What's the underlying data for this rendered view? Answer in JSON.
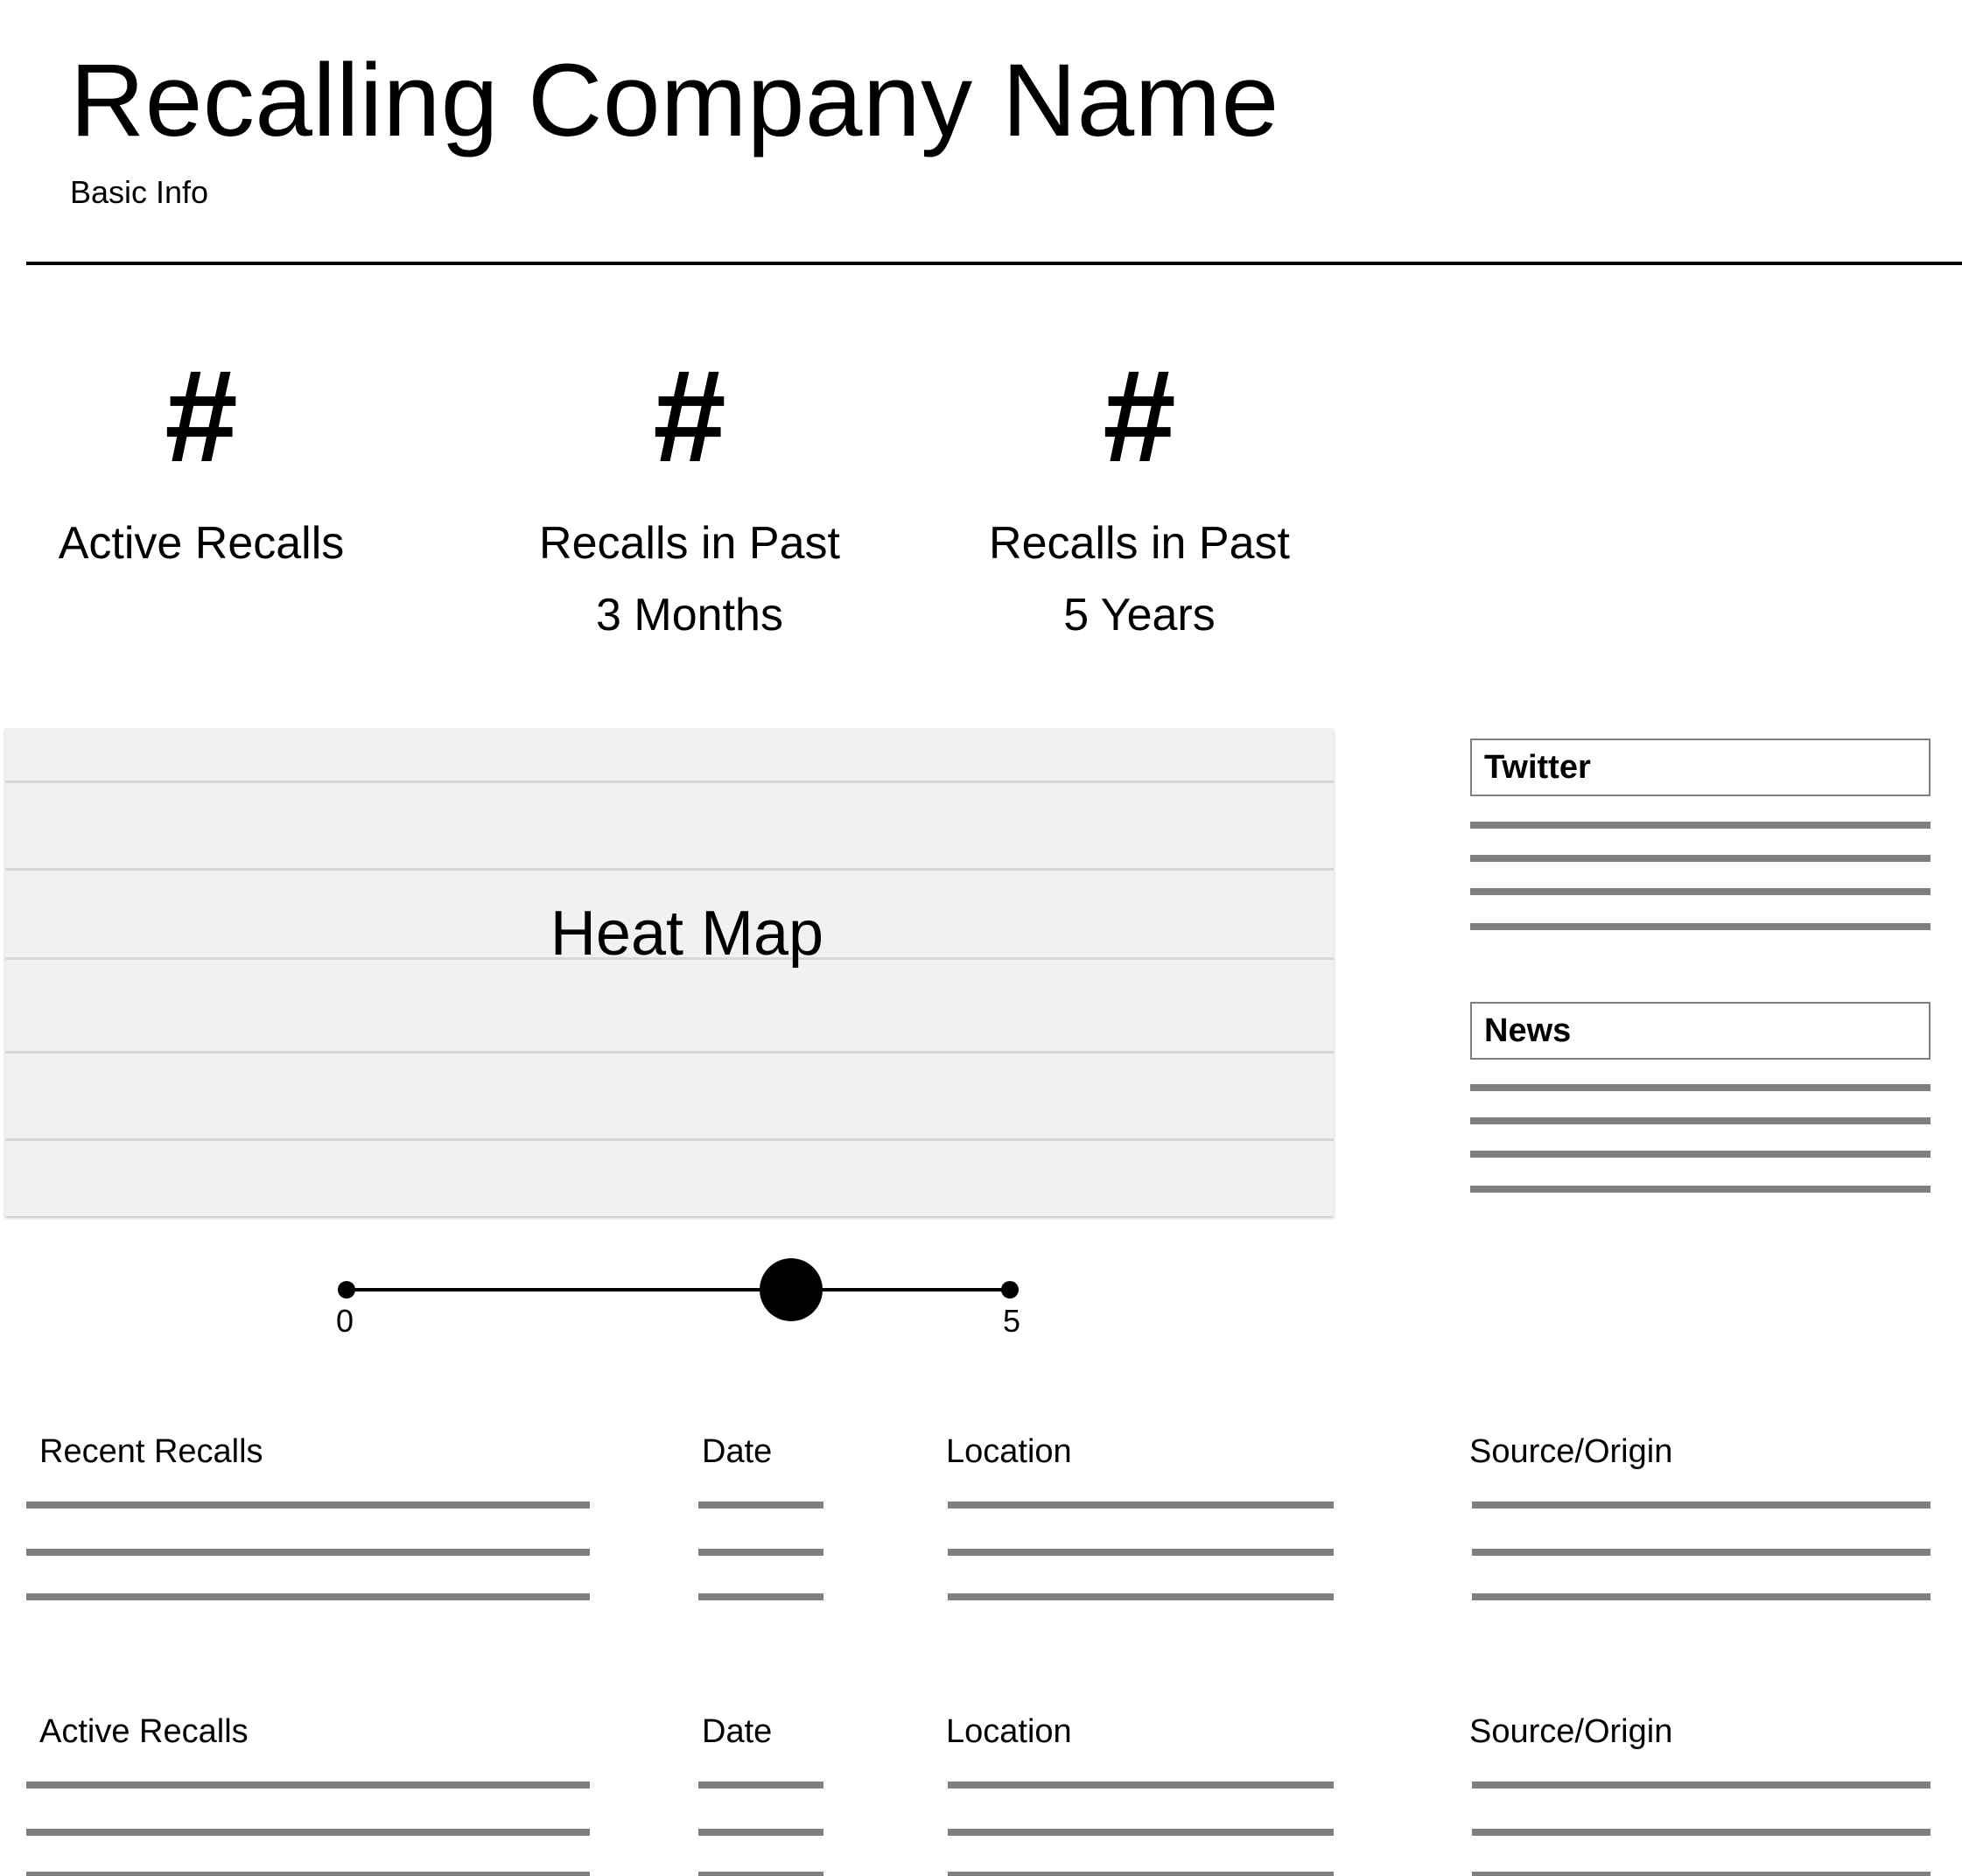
{
  "header": {
    "title": "Recalling Company Name",
    "subtitle": "Basic Info"
  },
  "stats": [
    {
      "value": "#",
      "label_line1": "Active Recalls",
      "label_line2": ""
    },
    {
      "value": "#",
      "label_line1": "Recalls in Past",
      "label_line2": "3 Months"
    },
    {
      "value": "#",
      "label_line1": "Recalls in Past",
      "label_line2": "5 Years"
    }
  ],
  "heatmap": {
    "label": "Heat Map"
  },
  "slider": {
    "min_label": "0",
    "max_label": "5",
    "min": 0,
    "max": 5,
    "value_fraction": 0.67
  },
  "side_panels": {
    "twitter": {
      "title": "Twitter",
      "placeholder_lines": 4
    },
    "news": {
      "title": "News",
      "placeholder_lines": 4
    }
  },
  "tables": [
    {
      "columns": [
        "Recent Recalls",
        "Date",
        "Location",
        "Source/Origin"
      ],
      "placeholder_rows": 3
    },
    {
      "columns": [
        "Active Recalls",
        "Date",
        "Location",
        "Source/Origin"
      ],
      "placeholder_rows": 3
    }
  ],
  "colors": {
    "placeholder_line": "#7f7f7f",
    "heatmap_bg": "#f1f1f1",
    "heatmap_grid": "#d7d7d7",
    "rule": "#000000"
  }
}
